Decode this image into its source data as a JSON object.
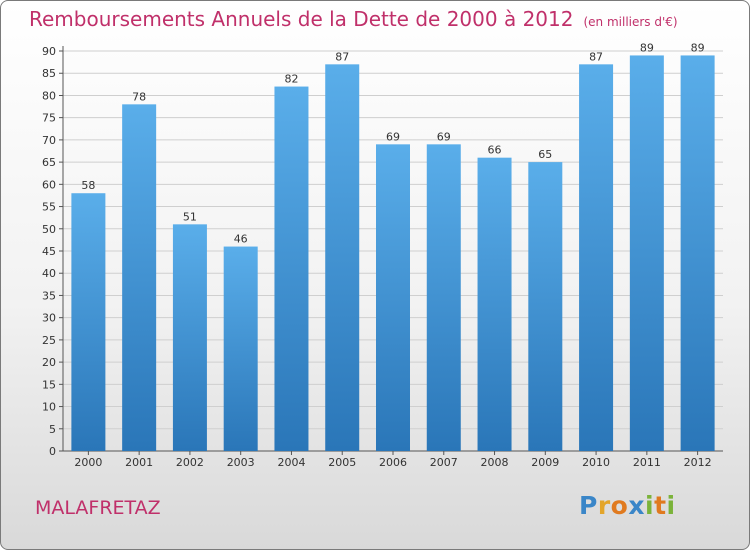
{
  "title": {
    "main": "Remboursements Annuels de la Dette de 2000 à 2012",
    "unit": "(en milliers d'€)"
  },
  "commune": "MALAFRETAZ",
  "logo": {
    "text": "Proxiti",
    "letters": [
      {
        "char": "P",
        "color": "#3a86c8"
      },
      {
        "char": "r",
        "color": "#e3a52a"
      },
      {
        "char": "o",
        "color": "#e07a1f"
      },
      {
        "char": "x",
        "color": "#3a86c8"
      },
      {
        "char": "i",
        "color": "#7bb33a"
      },
      {
        "char": "t",
        "color": "#e07a1f"
      },
      {
        "char": "i",
        "color": "#7bb33a"
      }
    ]
  },
  "colors": {
    "bar_top": "#5aaeea",
    "bar_bottom": "#2a76b8",
    "title": "#c0306a",
    "grid": "#cfcfcf"
  },
  "chart_data": {
    "type": "bar",
    "categories": [
      "2000",
      "2001",
      "2002",
      "2003",
      "2004",
      "2005",
      "2006",
      "2007",
      "2008",
      "2009",
      "2010",
      "2011",
      "2012"
    ],
    "values": [
      58,
      78,
      51,
      46,
      82,
      87,
      69,
      69,
      66,
      65,
      87,
      89,
      89
    ],
    "ylim": [
      0,
      90
    ],
    "yticks": [
      0,
      5,
      10,
      15,
      20,
      25,
      30,
      35,
      40,
      45,
      50,
      55,
      60,
      65,
      70,
      75,
      80,
      85,
      90
    ],
    "grid": true,
    "legend": "none"
  }
}
